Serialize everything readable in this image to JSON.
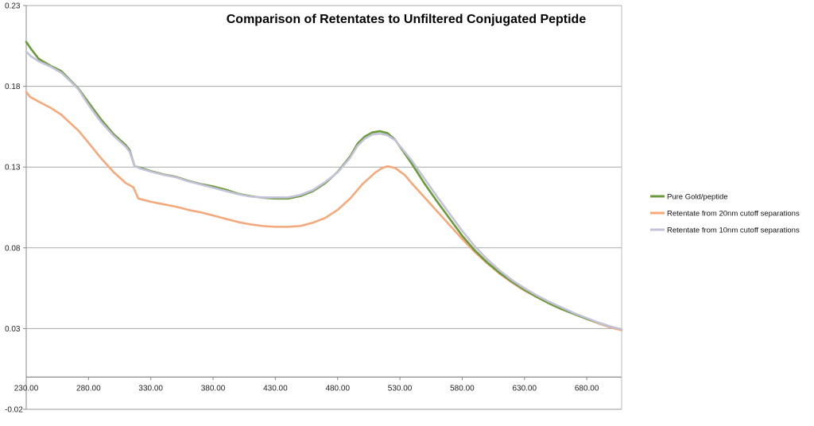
{
  "chart_data": {
    "type": "line",
    "title": "Comparison of Retentates to Unfiltered Conjugated Peptide",
    "xlabel": "",
    "ylabel": "",
    "xlim": [
      230,
      708
    ],
    "ylim": [
      -0.02,
      0.23
    ],
    "y_ticks": [
      -0.02,
      0.03,
      0.08,
      0.13,
      0.18,
      0.23
    ],
    "y_tick_labels": [
      "-0.02",
      "0.03",
      "0.08",
      "0.13",
      "0.18",
      "0.23"
    ],
    "x_ticks": [
      230,
      280,
      330,
      380,
      430,
      480,
      530,
      580,
      630,
      680
    ],
    "x_tick_labels": [
      "230.00",
      "280.00",
      "330.00",
      "380.00",
      "430.00",
      "480.00",
      "530.00",
      "580.00",
      "630.00",
      "680.00"
    ],
    "x_axis_at": 0.0,
    "grid": true,
    "legend_position": "right",
    "series": [
      {
        "name": "Pure Gold/peptide",
        "color": "#6a9a3a",
        "x": [
          230,
          234,
          240,
          250,
          258,
          265,
          272,
          280,
          290,
          300,
          310,
          313,
          317,
          322,
          330,
          340,
          350,
          360,
          370,
          380,
          390,
          400,
          410,
          420,
          430,
          440,
          450,
          460,
          470,
          480,
          490,
          496,
          502,
          508,
          514,
          520,
          526,
          532,
          540,
          550,
          560,
          570,
          580,
          590,
          600,
          610,
          620,
          630,
          640,
          650,
          660,
          670,
          680,
          690,
          700,
          708
        ],
        "y": [
          0.2075,
          0.203,
          0.197,
          0.1925,
          0.1895,
          0.184,
          0.1785,
          0.17,
          0.1595,
          0.1505,
          0.1435,
          0.1405,
          0.1305,
          0.1295,
          0.1275,
          0.1255,
          0.124,
          0.1215,
          0.1195,
          0.118,
          0.116,
          0.1135,
          0.112,
          0.111,
          0.1105,
          0.1105,
          0.112,
          0.115,
          0.12,
          0.127,
          0.1365,
          0.1445,
          0.149,
          0.1515,
          0.1522,
          0.151,
          0.147,
          0.1405,
          0.1315,
          0.1195,
          0.1085,
          0.098,
          0.0875,
          0.0785,
          0.071,
          0.0645,
          0.059,
          0.054,
          0.0495,
          0.0455,
          0.042,
          0.039,
          0.036,
          0.0335,
          0.031,
          0.0295
        ]
      },
      {
        "name": "Retentate from 20nm cutoff separations",
        "color": "#f5a97a",
        "x": [
          230,
          233,
          240,
          250,
          258,
          265,
          272,
          280,
          290,
          300,
          310,
          316,
          320,
          330,
          340,
          350,
          360,
          370,
          380,
          390,
          400,
          410,
          420,
          430,
          440,
          450,
          460,
          470,
          480,
          490,
          500,
          510,
          516,
          520,
          526,
          534,
          540,
          550,
          560,
          570,
          580,
          590,
          600,
          610,
          620,
          630,
          640,
          650,
          660,
          670,
          680,
          690,
          700,
          708
        ],
        "y": [
          0.1765,
          0.1735,
          0.1705,
          0.1665,
          0.1625,
          0.1575,
          0.1525,
          0.145,
          0.1355,
          0.127,
          0.12,
          0.1175,
          0.1105,
          0.1085,
          0.107,
          0.1055,
          0.1035,
          0.102,
          0.1,
          0.098,
          0.096,
          0.0945,
          0.0935,
          0.093,
          0.093,
          0.0935,
          0.0955,
          0.0985,
          0.1035,
          0.1105,
          0.1195,
          0.1265,
          0.1295,
          0.1305,
          0.1295,
          0.125,
          0.1195,
          0.111,
          0.1025,
          0.094,
          0.0855,
          0.0775,
          0.0705,
          0.064,
          0.0585,
          0.0535,
          0.0495,
          0.0455,
          0.042,
          0.039,
          0.036,
          0.033,
          0.0305,
          0.029
        ]
      },
      {
        "name": "Retentate from 10nm cutoff separations",
        "color": "#c3c2da",
        "x": [
          230,
          234,
          240,
          250,
          258,
          265,
          272,
          280,
          290,
          300,
          310,
          313,
          317,
          322,
          330,
          340,
          350,
          360,
          370,
          380,
          390,
          400,
          410,
          420,
          430,
          440,
          450,
          460,
          470,
          480,
          490,
          496,
          502,
          508,
          514,
          520,
          526,
          532,
          540,
          550,
          560,
          570,
          580,
          590,
          600,
          610,
          620,
          630,
          640,
          650,
          660,
          670,
          680,
          690,
          700,
          708
        ],
        "y": [
          0.2015,
          0.1985,
          0.1955,
          0.192,
          0.1885,
          0.1835,
          0.178,
          0.1685,
          0.158,
          0.1495,
          0.1425,
          0.1395,
          0.1305,
          0.129,
          0.1272,
          0.1252,
          0.1237,
          0.1212,
          0.1192,
          0.1172,
          0.1152,
          0.1132,
          0.1117,
          0.1112,
          0.1112,
          0.1112,
          0.1127,
          0.1157,
          0.1207,
          0.1267,
          0.1357,
          0.1432,
          0.1477,
          0.1502,
          0.1507,
          0.1497,
          0.1467,
          0.1412,
          0.1335,
          0.1225,
          0.1115,
          0.101,
          0.0905,
          0.081,
          0.073,
          0.066,
          0.06,
          0.055,
          0.0505,
          0.0465,
          0.043,
          0.0395,
          0.0365,
          0.0335,
          0.031,
          0.0295
        ]
      }
    ]
  }
}
